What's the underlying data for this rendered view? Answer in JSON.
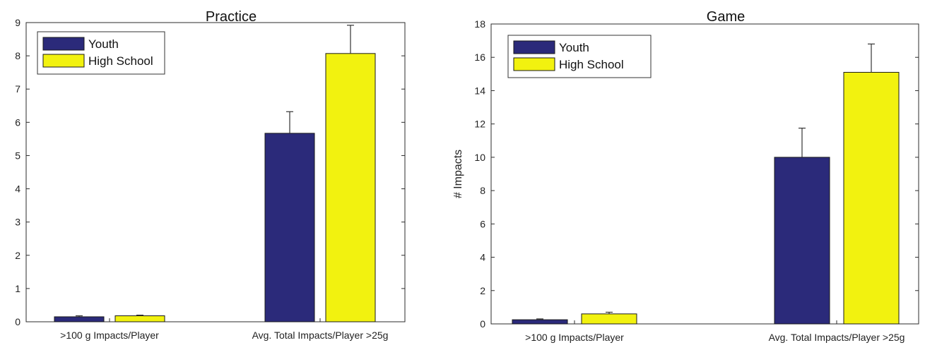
{
  "chart_data": [
    {
      "type": "bar",
      "title": "Practice",
      "xlabel": "",
      "ylabel": "",
      "categories": [
        ">100 g Impacts/Player",
        "Avg. Total Impacts/Player >25g"
      ],
      "ylim": [
        0,
        9
      ],
      "yticks": [
        0,
        1,
        2,
        3,
        4,
        5,
        6,
        7,
        8,
        9
      ],
      "grid": false,
      "legend_placement": "top-left",
      "series": [
        {
          "name": "Youth",
          "color": "#2b2a7a",
          "values": [
            0.15,
            5.67
          ],
          "errors": [
            0.03,
            0.65
          ]
        },
        {
          "name": "High School",
          "color": "#f2f20f",
          "values": [
            0.18,
            8.07
          ],
          "errors": [
            0.02,
            0.85
          ]
        }
      ]
    },
    {
      "type": "bar",
      "title": "Game",
      "xlabel": "",
      "ylabel": "# Impacts",
      "categories": [
        ">100 g Impacts/Player",
        "Avg. Total Impacts/Player >25g"
      ],
      "ylim": [
        0,
        18
      ],
      "yticks": [
        0,
        2,
        4,
        6,
        8,
        10,
        12,
        14,
        16,
        18
      ],
      "grid": false,
      "legend_placement": "top-left",
      "series": [
        {
          "name": "Youth",
          "color": "#2b2a7a",
          "values": [
            0.25,
            10.0
          ],
          "errors": [
            0.05,
            1.75
          ]
        },
        {
          "name": "High School",
          "color": "#f2f20f",
          "values": [
            0.6,
            15.1
          ],
          "errors": [
            0.1,
            1.7
          ]
        }
      ]
    }
  ]
}
